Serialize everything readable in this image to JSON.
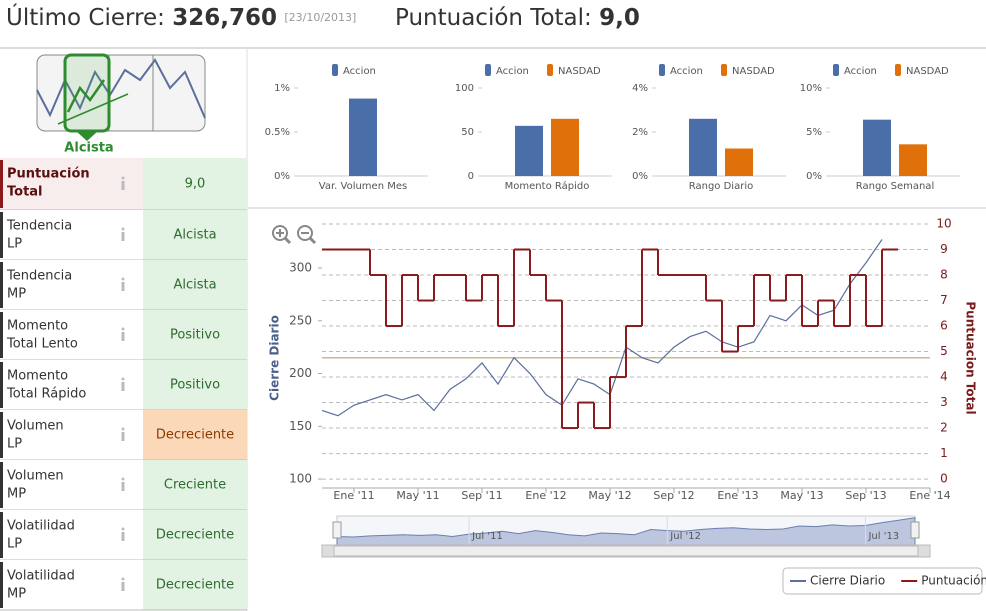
{
  "header": {
    "last_close_label": "Último Cierre:",
    "last_close": "326,760",
    "date": "[23/10/2013]",
    "score_label": "Puntuación Total:",
    "score": "9,0"
  },
  "trend_badge": "Alcista",
  "indicators": [
    {
      "name": [
        "Puntuación",
        "Total"
      ],
      "value": "9,0",
      "color": "#e3f3e3"
    },
    {
      "name": [
        "Tendencia",
        "LP"
      ],
      "value": "Alcista",
      "color": "#e3f3e3"
    },
    {
      "name": [
        "Tendencia",
        "MP"
      ],
      "value": "Alcista",
      "color": "#e3f3e3"
    },
    {
      "name": [
        "Momento",
        "Total Lento"
      ],
      "value": "Positivo",
      "color": "#e3f3e3"
    },
    {
      "name": [
        "Momento",
        "Total Rápido"
      ],
      "value": "Positivo",
      "color": "#e3f3e3"
    },
    {
      "name": [
        "Volumen",
        "LP"
      ],
      "value": "Decreciente",
      "color": "#fbd9b8"
    },
    {
      "name": [
        "Volumen",
        "MP"
      ],
      "value": "Creciente",
      "color": "#e3f3e3"
    },
    {
      "name": [
        "Volatilidad",
        "LP"
      ],
      "value": "Decreciente",
      "color": "#e3f3e3"
    },
    {
      "name": [
        "Volatilidad",
        "MP"
      ],
      "value": "Decreciente",
      "color": "#e3f3e3"
    }
  ],
  "chart_data": [
    {
      "type": "bar",
      "categories": [
        "Var. Volumen Mes"
      ],
      "series": [
        {
          "name": "Accion",
          "color": "#4a6ea8",
          "values": [
            0.88
          ]
        }
      ],
      "ylim": [
        0,
        1
      ],
      "yticks": [
        {
          "value": 0,
          "label": "0%"
        },
        {
          "value": 0.5,
          "label": "0.5%"
        },
        {
          "value": 1,
          "label": "1%"
        }
      ]
    },
    {
      "type": "bar",
      "categories": [
        "Momento Rápido"
      ],
      "series": [
        {
          "name": "Accion",
          "color": "#4a6ea8",
          "values": [
            57
          ]
        },
        {
          "name": "NASDAD",
          "color": "#e0700a",
          "values": [
            65
          ]
        }
      ],
      "ylim": [
        0,
        100
      ],
      "yticks": [
        0,
        50,
        100
      ]
    },
    {
      "type": "bar",
      "categories": [
        "Rango Diario"
      ],
      "series": [
        {
          "name": "Accion",
          "color": "#4a6ea8",
          "values": [
            2.6
          ]
        },
        {
          "name": "NASDAD",
          "color": "#e0700a",
          "values": [
            1.25
          ]
        }
      ],
      "ylim": [
        0,
        4
      ],
      "yticks": [
        {
          "value": 0,
          "label": "0%"
        },
        {
          "value": 2,
          "label": "2%"
        },
        {
          "value": 4,
          "label": "4%"
        }
      ]
    },
    {
      "type": "bar",
      "categories": [
        "Rango Semanal"
      ],
      "series": [
        {
          "name": "Accion",
          "color": "#4a6ea8",
          "values": [
            6.4
          ]
        },
        {
          "name": "NASDAD",
          "color": "#e0700a",
          "values": [
            3.6
          ]
        }
      ],
      "ylim": [
        0,
        10
      ],
      "yticks": [
        {
          "value": 0,
          "label": "0%"
        },
        {
          "value": 5,
          "label": "5%"
        },
        {
          "value": 10,
          "label": "10%"
        }
      ]
    },
    {
      "type": "line",
      "x": [
        "2010-11",
        "2010-12",
        "2011-01",
        "2011-02",
        "2011-03",
        "2011-04",
        "2011-05",
        "2011-06",
        "2011-07",
        "2011-08",
        "2011-09",
        "2011-10",
        "2011-11",
        "2011-12",
        "2012-01",
        "2012-02",
        "2012-03",
        "2012-04",
        "2012-05",
        "2012-06",
        "2012-07",
        "2012-08",
        "2012-09",
        "2012-10",
        "2012-11",
        "2012-12",
        "2013-01",
        "2013-02",
        "2013-03",
        "2013-04",
        "2013-05",
        "2013-06",
        "2013-07",
        "2013-08",
        "2013-09",
        "2013-10"
      ],
      "series": [
        {
          "name": "Cierre Diario",
          "color": "#5b6e9c",
          "values": [
            165,
            160,
            170,
            175,
            180,
            175,
            180,
            165,
            185,
            195,
            210,
            190,
            215,
            200,
            180,
            170,
            195,
            190,
            180,
            225,
            215,
            210,
            225,
            235,
            240,
            230,
            225,
            230,
            255,
            250,
            265,
            255,
            260,
            285,
            305,
            327
          ]
        },
        {
          "name": "Puntuación",
          "color": "#8b1a1a",
          "axis": "y2",
          "step": true,
          "values": [
            9,
            9,
            9,
            8,
            6,
            8,
            7,
            8,
            8,
            7,
            8,
            6,
            9,
            8,
            7,
            2,
            3,
            2,
            4,
            6,
            9,
            8,
            8,
            8,
            7,
            5,
            6,
            8,
            7,
            8,
            6,
            7,
            6,
            8,
            6,
            9
          ]
        }
      ],
      "xlim": [
        "2010-11",
        "2014-01"
      ],
      "xticks": [
        {
          "value": "2011-01",
          "label": "Ene '11"
        },
        {
          "value": "2011-05",
          "label": "May '11"
        },
        {
          "value": "2011-09",
          "label": "Sep '11"
        },
        {
          "value": "2012-01",
          "label": "Ene '12"
        },
        {
          "value": "2012-05",
          "label": "May '12"
        },
        {
          "value": "2012-09",
          "label": "Sep '12"
        },
        {
          "value": "2013-01",
          "label": "Ene '13"
        },
        {
          "value": "2013-05",
          "label": "May '13"
        },
        {
          "value": "2013-09",
          "label": "Sep '13"
        },
        {
          "value": "2014-01",
          "label": "Ene '14"
        }
      ],
      "ylim": [
        91.5,
        341.7
      ],
      "yticks": [
        100,
        150,
        200,
        250,
        300
      ],
      "y2lim": [
        -0.35,
        10
      ],
      "y2ticks": [
        0,
        1,
        2,
        3,
        4,
        5,
        6,
        7,
        8,
        9,
        10
      ],
      "ylabel": "Cierre Diario",
      "y2label": "Puntuacion Total",
      "reference_line": {
        "value": 215,
        "color": "#cbb98a"
      },
      "navigator_ticks": [
        {
          "value": "2011-07",
          "label": "Jul '11"
        },
        {
          "value": "2012-07",
          "label": "Jul '12"
        },
        {
          "value": "2013-07",
          "label": "Jul '13"
        }
      ],
      "grid": true,
      "legend": "bottom-right"
    }
  ]
}
